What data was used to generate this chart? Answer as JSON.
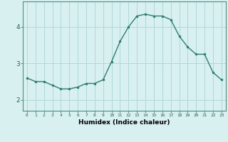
{
  "x": [
    0,
    1,
    2,
    3,
    4,
    5,
    6,
    7,
    8,
    9,
    10,
    11,
    12,
    13,
    14,
    15,
    16,
    17,
    18,
    19,
    20,
    21,
    22,
    23
  ],
  "y": [
    2.6,
    2.5,
    2.5,
    2.4,
    2.3,
    2.3,
    2.35,
    2.45,
    2.45,
    2.55,
    3.05,
    3.6,
    4.0,
    4.3,
    4.35,
    4.3,
    4.3,
    4.2,
    3.75,
    3.45,
    3.25,
    3.25,
    2.75,
    2.55
  ],
  "xlabel": "Humidex (Indice chaleur)",
  "yticks": [
    2,
    3,
    4
  ],
  "ylim": [
    1.7,
    4.7
  ],
  "xlim": [
    -0.5,
    23.5
  ],
  "line_color": "#2e7d6e",
  "marker_color": "#2e7d6e",
  "bg_color": "#d8f0f0",
  "grid_color": "#b0d8d8"
}
